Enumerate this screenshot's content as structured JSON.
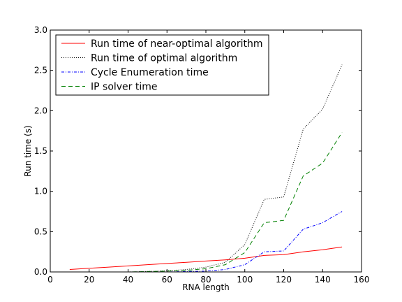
{
  "chart_data": {
    "type": "line",
    "xlabel": "RNA length",
    "ylabel": "Run time (s)",
    "xlim": [
      0,
      160
    ],
    "ylim": [
      0,
      3.0
    ],
    "xticks": [
      0,
      20,
      40,
      60,
      80,
      100,
      120,
      140,
      160
    ],
    "xtick_labels": [
      "0",
      "20",
      "40",
      "60",
      "80",
      "100",
      "120",
      "140",
      "160"
    ],
    "yticks": [
      0,
      0.5,
      1.0,
      1.5,
      2.0,
      2.5,
      3.0
    ],
    "ytick_labels": [
      "0.0",
      "0.5",
      "1.0",
      "1.5",
      "2.0",
      "2.5",
      "3.0"
    ],
    "grid": false,
    "legend_position": "top-left",
    "x": [
      10,
      20,
      30,
      40,
      50,
      60,
      70,
      80,
      90,
      100,
      110,
      120,
      130,
      140,
      150
    ],
    "series": [
      {
        "name": "Run time of near-optimal algorithm",
        "color": "#ff0000",
        "style": "solid",
        "values": [
          0.03,
          0.045,
          0.06,
          0.075,
          0.09,
          0.105,
          0.12,
          0.135,
          0.15,
          0.17,
          0.205,
          0.215,
          0.25,
          0.275,
          0.31
        ]
      },
      {
        "name": "Run time of optimal algorithm",
        "color": "#000000",
        "style": "dotted",
        "values": [
          0.0,
          0.0,
          0.0,
          0.0,
          0.005,
          0.015,
          0.03,
          0.06,
          0.12,
          0.34,
          0.9,
          0.93,
          1.77,
          2.02,
          2.57
        ]
      },
      {
        "name": "Cycle Enumeration time",
        "color": "#0000ff",
        "style": "dashdot",
        "values": [
          0.0,
          0.0,
          0.0,
          0.0,
          0.0,
          0.0,
          0.005,
          0.01,
          0.03,
          0.09,
          0.25,
          0.26,
          0.53,
          0.61,
          0.75
        ]
      },
      {
        "name": "IP solver time",
        "color": "#008000",
        "style": "dashed",
        "values": [
          0.0,
          0.0,
          0.0,
          0.0,
          0.005,
          0.01,
          0.02,
          0.04,
          0.09,
          0.24,
          0.61,
          0.64,
          1.19,
          1.35,
          1.73
        ]
      }
    ]
  }
}
